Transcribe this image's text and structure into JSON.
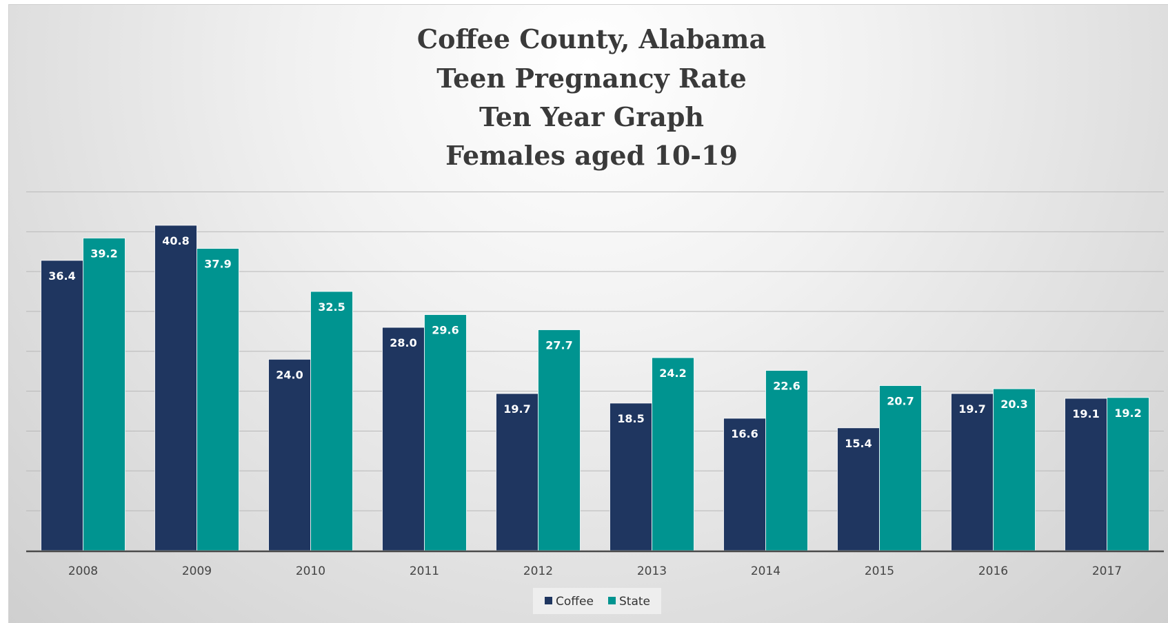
{
  "chart_data": {
    "type": "bar",
    "title_lines": [
      "Coffee County, Alabama",
      "Teen Pregnancy Rate",
      "Ten Year Graph",
      "Females aged 10-19"
    ],
    "categories": [
      "2008",
      "2009",
      "2010",
      "2011",
      "2012",
      "2013",
      "2014",
      "2015",
      "2016",
      "2017"
    ],
    "series": [
      {
        "name": "Coffee",
        "color": "#1f3660",
        "values": [
          36.4,
          40.8,
          24.0,
          28.0,
          19.7,
          18.5,
          16.6,
          15.4,
          19.7,
          19.1
        ],
        "labels": [
          "36.4",
          "40.8",
          "24.0",
          "28.0",
          "19.7",
          "18.5",
          "16.6",
          "15.4",
          "19.7",
          "19.1"
        ]
      },
      {
        "name": "State",
        "color": "#009490",
        "values": [
          39.2,
          37.9,
          32.5,
          29.6,
          27.7,
          24.2,
          22.6,
          20.7,
          20.3,
          19.2
        ],
        "labels": [
          "39.2",
          "37.9",
          "32.5",
          "29.6",
          "27.7",
          "24.2",
          "22.6",
          "20.7",
          "20.3",
          "19.2"
        ]
      }
    ],
    "ylim": [
      0,
      45
    ],
    "grid": true,
    "legend_position": "bottom",
    "data_labels": "inside-top",
    "colors": {
      "gridline": "#b8b8b8",
      "axis": "#4a4a4a"
    }
  }
}
